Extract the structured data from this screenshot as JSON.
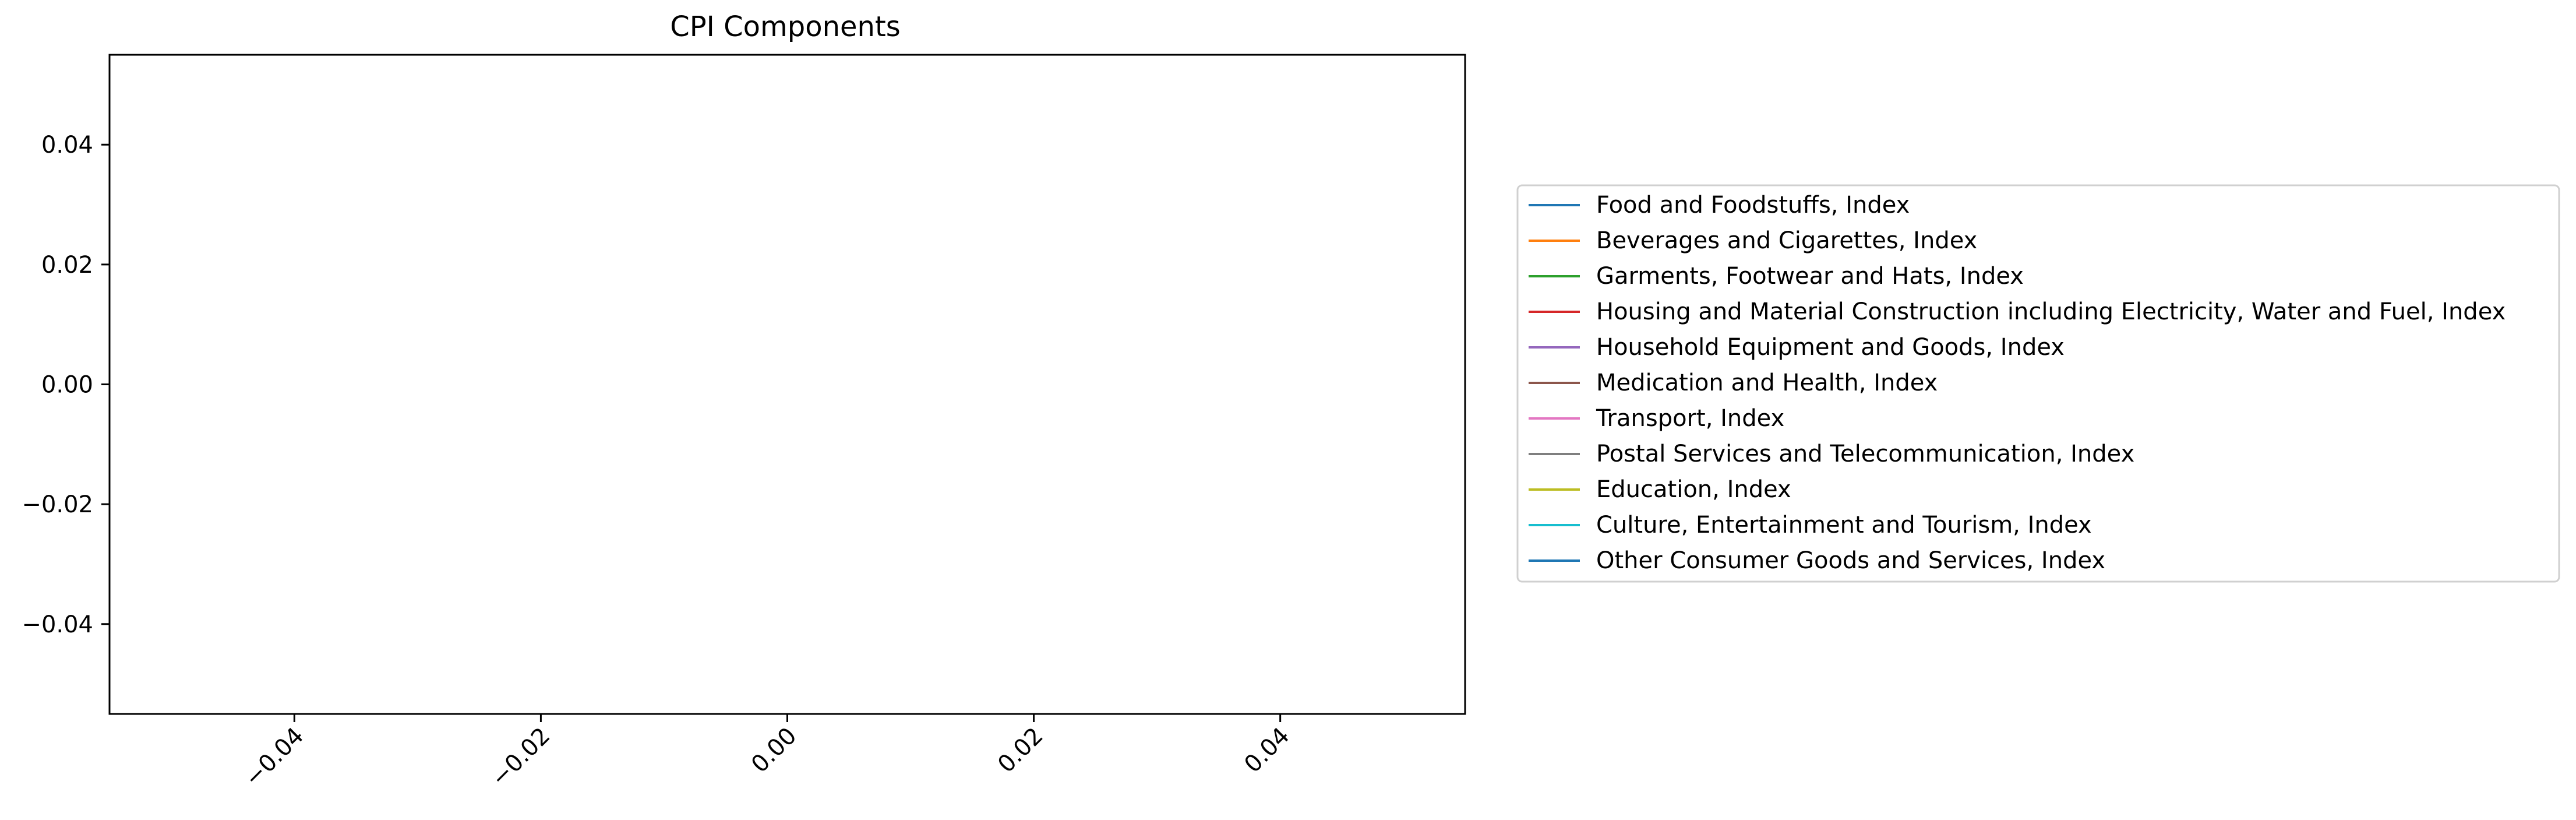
{
  "chart_data": {
    "type": "line",
    "title": "CPI Components",
    "xlabel": "",
    "ylabel": "",
    "xlim": [
      -0.055,
      0.055
    ],
    "ylim": [
      -0.055,
      0.055
    ],
    "x_ticks": [
      -0.04,
      -0.02,
      0.0,
      0.02,
      0.04
    ],
    "x_tick_labels": [
      "−0.04",
      "−0.02",
      "0.00",
      "0.02",
      "0.04"
    ],
    "y_ticks": [
      0.04,
      0.02,
      0.0,
      -0.02,
      -0.04
    ],
    "y_tick_labels": [
      "0.04",
      "0.02",
      "0.00",
      "−0.02",
      "−0.04"
    ],
    "grid": false,
    "legend_position": "outside-right",
    "series": [
      {
        "name": "Food and Foodstuffs, Index",
        "color": "#1f77b4",
        "x": [],
        "values": []
      },
      {
        "name": "Beverages and Cigarettes, Index",
        "color": "#ff7f0e",
        "x": [],
        "values": []
      },
      {
        "name": "Garments, Footwear and Hats, Index",
        "color": "#2ca02c",
        "x": [],
        "values": []
      },
      {
        "name": "Housing and Material Construction including Electricity, Water and Fuel, Index",
        "color": "#d62728",
        "x": [],
        "values": []
      },
      {
        "name": "Household Equipment and Goods, Index",
        "color": "#9467bd",
        "x": [],
        "values": []
      },
      {
        "name": "Medication and Health, Index",
        "color": "#8c564b",
        "x": [],
        "values": []
      },
      {
        "name": "Transport, Index",
        "color": "#e377c2",
        "x": [],
        "values": []
      },
      {
        "name": "Postal Services and Telecommunication, Index",
        "color": "#7f7f7f",
        "x": [],
        "values": []
      },
      {
        "name": "Education, Index",
        "color": "#bcbd22",
        "x": [],
        "values": []
      },
      {
        "name": "Culture, Entertainment and Tourism, Index",
        "color": "#17becf",
        "x": [],
        "values": []
      },
      {
        "name": "Other Consumer Goods and Services, Index",
        "color": "#1f77b4",
        "x": [],
        "values": []
      }
    ]
  }
}
